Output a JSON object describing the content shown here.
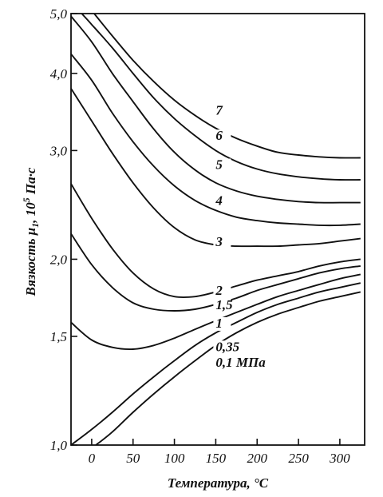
{
  "chart_data": {
    "type": "line",
    "title": "",
    "xlabel": "Температура, °С",
    "ylabel_main": "Вязкость μ",
    "ylabel_sub": "1",
    "ylabel_suffix": ", 10",
    "ylabel_exp": "5",
    "ylabel_unit": " Па·с",
    "xlim": [
      -25,
      330
    ],
    "ylim": [
      1.0,
      5.0
    ],
    "y_scale": "log",
    "grid": false,
    "x_ticks": [
      {
        "value": 0,
        "label": "0"
      },
      {
        "value": 50,
        "label": "50"
      },
      {
        "value": 100,
        "label": "100"
      },
      {
        "value": 150,
        "label": "150"
      },
      {
        "value": 200,
        "label": "200"
      },
      {
        "value": 250,
        "label": "250"
      },
      {
        "value": 300,
        "label": "300"
      }
    ],
    "y_ticks": [
      {
        "value": 1.0,
        "label": "1,0"
      },
      {
        "value": 1.5,
        "label": "1,5"
      },
      {
        "value": 2.0,
        "label": "2,0"
      },
      {
        "value": 3.0,
        "label": "3,0"
      },
      {
        "value": 4.0,
        "label": "4,0"
      },
      {
        "value": 5.0,
        "label": "5,0"
      }
    ],
    "series": [
      {
        "name": "7",
        "label_at": [
          150,
          3.43
        ],
        "points": [
          [
            3,
            5.0
          ],
          [
            25,
            4.6
          ],
          [
            50,
            4.2
          ],
          [
            75,
            3.88
          ],
          [
            100,
            3.62
          ],
          [
            125,
            3.42
          ],
          [
            150,
            3.26
          ],
          [
            175,
            3.14
          ],
          [
            200,
            3.05
          ],
          [
            225,
            2.98
          ],
          [
            250,
            2.95
          ],
          [
            275,
            2.93
          ],
          [
            300,
            2.92
          ],
          [
            325,
            2.92
          ]
        ]
      },
      {
        "name": "6",
        "label_at": [
          150,
          3.12
        ],
        "points": [
          [
            -12,
            5.0
          ],
          [
            0,
            4.8
          ],
          [
            25,
            4.4
          ],
          [
            50,
            4.0
          ],
          [
            75,
            3.65
          ],
          [
            100,
            3.38
          ],
          [
            125,
            3.17
          ],
          [
            150,
            3.0
          ],
          [
            175,
            2.88
          ],
          [
            200,
            2.8
          ],
          [
            225,
            2.75
          ],
          [
            250,
            2.72
          ],
          [
            275,
            2.7
          ],
          [
            300,
            2.69
          ],
          [
            325,
            2.69
          ]
        ]
      },
      {
        "name": "5",
        "label_at": [
          150,
          2.8
        ],
        "points": [
          [
            -25,
            4.95
          ],
          [
            0,
            4.5
          ],
          [
            25,
            4.0
          ],
          [
            50,
            3.6
          ],
          [
            75,
            3.25
          ],
          [
            100,
            2.98
          ],
          [
            125,
            2.79
          ],
          [
            150,
            2.66
          ],
          [
            175,
            2.58
          ],
          [
            200,
            2.53
          ],
          [
            225,
            2.5
          ],
          [
            250,
            2.48
          ],
          [
            275,
            2.47
          ],
          [
            300,
            2.47
          ],
          [
            325,
            2.47
          ]
        ]
      },
      {
        "name": "4",
        "label_at": [
          150,
          2.45
        ],
        "points": [
          [
            -25,
            4.3
          ],
          [
            0,
            3.9
          ],
          [
            25,
            3.45
          ],
          [
            50,
            3.1
          ],
          [
            75,
            2.83
          ],
          [
            100,
            2.63
          ],
          [
            125,
            2.49
          ],
          [
            150,
            2.4
          ],
          [
            175,
            2.34
          ],
          [
            200,
            2.31
          ],
          [
            225,
            2.29
          ],
          [
            250,
            2.28
          ],
          [
            275,
            2.27
          ],
          [
            300,
            2.27
          ],
          [
            325,
            2.28
          ]
        ]
      },
      {
        "name": "3",
        "label_at": [
          150,
          2.1
        ],
        "points": [
          [
            -25,
            3.78
          ],
          [
            0,
            3.35
          ],
          [
            25,
            2.97
          ],
          [
            50,
            2.66
          ],
          [
            75,
            2.42
          ],
          [
            100,
            2.25
          ],
          [
            125,
            2.15
          ],
          [
            150,
            2.11
          ],
          [
            175,
            2.1
          ],
          [
            200,
            2.1
          ],
          [
            225,
            2.1
          ],
          [
            250,
            2.11
          ],
          [
            275,
            2.12
          ],
          [
            300,
            2.14
          ],
          [
            325,
            2.16
          ]
        ]
      },
      {
        "name": "2",
        "label_at": [
          150,
          1.75
        ],
        "points": [
          [
            -25,
            2.65
          ],
          [
            0,
            2.33
          ],
          [
            25,
            2.08
          ],
          [
            50,
            1.9
          ],
          [
            75,
            1.79
          ],
          [
            100,
            1.74
          ],
          [
            125,
            1.74
          ],
          [
            150,
            1.77
          ],
          [
            175,
            1.81
          ],
          [
            200,
            1.85
          ],
          [
            225,
            1.88
          ],
          [
            250,
            1.91
          ],
          [
            275,
            1.95
          ],
          [
            300,
            1.98
          ],
          [
            325,
            2.0
          ]
        ]
      },
      {
        "name": "1,5",
        "label_at": [
          150,
          1.66
        ],
        "points": [
          [
            -25,
            2.2
          ],
          [
            0,
            1.96
          ],
          [
            25,
            1.8
          ],
          [
            50,
            1.7
          ],
          [
            75,
            1.66
          ],
          [
            100,
            1.65
          ],
          [
            125,
            1.66
          ],
          [
            150,
            1.69
          ],
          [
            175,
            1.73
          ],
          [
            200,
            1.78
          ],
          [
            225,
            1.82
          ],
          [
            250,
            1.86
          ],
          [
            275,
            1.9
          ],
          [
            300,
            1.93
          ],
          [
            325,
            1.95
          ]
        ]
      },
      {
        "name": "1",
        "label_at": [
          150,
          1.55
        ],
        "points": [
          [
            -25,
            1.58
          ],
          [
            0,
            1.48
          ],
          [
            25,
            1.44
          ],
          [
            50,
            1.43
          ],
          [
            75,
            1.45
          ],
          [
            100,
            1.49
          ],
          [
            125,
            1.54
          ],
          [
            150,
            1.59
          ],
          [
            175,
            1.64
          ],
          [
            200,
            1.69
          ],
          [
            225,
            1.74
          ],
          [
            250,
            1.78
          ],
          [
            275,
            1.82
          ],
          [
            300,
            1.86
          ],
          [
            325,
            1.89
          ]
        ]
      },
      {
        "name": "0,35",
        "label_at": [
          150,
          1.42
        ],
        "points": [
          [
            -25,
            1.0
          ],
          [
            0,
            1.06
          ],
          [
            25,
            1.13
          ],
          [
            50,
            1.21
          ],
          [
            75,
            1.29
          ],
          [
            100,
            1.37
          ],
          [
            125,
            1.45
          ],
          [
            150,
            1.52
          ],
          [
            175,
            1.58
          ],
          [
            200,
            1.64
          ],
          [
            225,
            1.69
          ],
          [
            250,
            1.73
          ],
          [
            275,
            1.77
          ],
          [
            300,
            1.8
          ],
          [
            325,
            1.83
          ]
        ]
      },
      {
        "name": "0,1 МПа",
        "label_at": [
          150,
          1.34
        ],
        "points": [
          [
            5,
            1.0
          ],
          [
            25,
            1.05
          ],
          [
            50,
            1.13
          ],
          [
            75,
            1.21
          ],
          [
            100,
            1.29
          ],
          [
            125,
            1.37
          ],
          [
            150,
            1.45
          ],
          [
            175,
            1.52
          ],
          [
            200,
            1.58
          ],
          [
            225,
            1.63
          ],
          [
            250,
            1.67
          ],
          [
            275,
            1.71
          ],
          [
            300,
            1.74
          ],
          [
            325,
            1.77
          ]
        ]
      }
    ]
  }
}
